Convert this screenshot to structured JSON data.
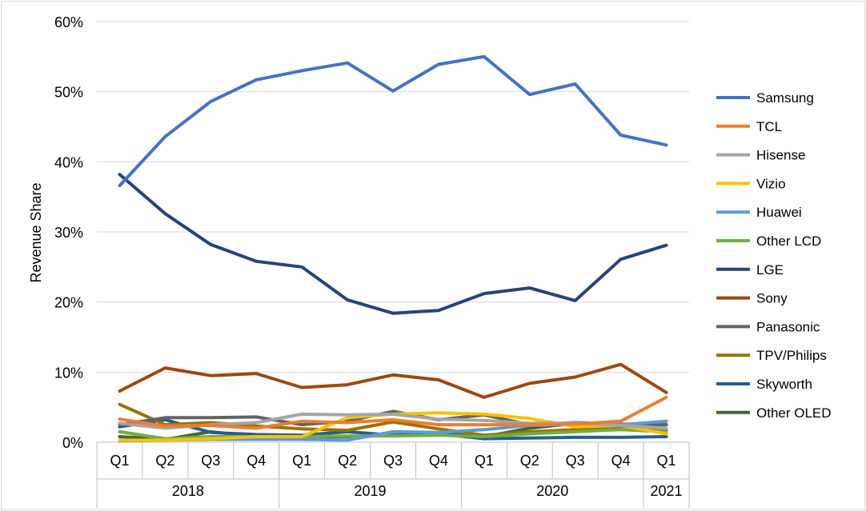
{
  "chart_data": {
    "type": "line",
    "title": "",
    "ylabel": "Revenue Share",
    "xlabel": "",
    "ylim": [
      0,
      60
    ],
    "yticks": [
      "0%",
      "10%",
      "20%",
      "30%",
      "40%",
      "50%",
      "60%"
    ],
    "grid": true,
    "legend_position": "right",
    "categories": [
      "Q1",
      "Q2",
      "Q3",
      "Q4",
      "Q1",
      "Q2",
      "Q3",
      "Q4",
      "Q1",
      "Q2",
      "Q3",
      "Q4",
      "Q1"
    ],
    "year_groups": [
      {
        "label": "2018",
        "span": 4
      },
      {
        "label": "2019",
        "span": 4
      },
      {
        "label": "2020",
        "span": 4
      },
      {
        "label": "2021",
        "span": 1
      }
    ],
    "series": [
      {
        "name": "Samsung",
        "color": "#4472C4",
        "values": [
          36.6,
          43.6,
          48.6,
          51.7,
          53.0,
          54.1,
          50.1,
          53.9,
          55.0,
          49.6,
          51.1,
          43.8,
          42.4
        ]
      },
      {
        "name": "TCL",
        "color": "#ED7D31",
        "values": [
          3.3,
          2.3,
          2.4,
          2.0,
          3.0,
          2.8,
          3.2,
          2.5,
          2.5,
          2.5,
          2.6,
          3.0,
          6.4
        ]
      },
      {
        "name": "Hisense",
        "color": "#A5A5A5",
        "values": [
          2.7,
          2.0,
          2.5,
          2.8,
          4.0,
          3.9,
          4.0,
          3.3,
          3.1,
          2.7,
          2.7,
          2.4,
          2.0
        ]
      },
      {
        "name": "Vizio",
        "color": "#FFC000",
        "values": [
          0.3,
          0.3,
          0.5,
          0.8,
          0.8,
          3.5,
          4.0,
          4.2,
          4.0,
          3.4,
          2.2,
          2.4,
          1.2
        ]
      },
      {
        "name": "Huawei",
        "color": "#5B9BD5",
        "values": [
          0.2,
          0.3,
          0.4,
          0.4,
          0.4,
          0.3,
          1.5,
          1.4,
          1.8,
          2.4,
          2.6,
          2.5,
          3.0
        ]
      },
      {
        "name": "Other LCD",
        "color": "#70AD47",
        "values": [
          1.5,
          0.5,
          0.8,
          0.8,
          0.8,
          0.9,
          0.9,
          1.0,
          0.8,
          1.2,
          1.5,
          1.8,
          1.5
        ]
      },
      {
        "name": "LGE",
        "color": "#264478",
        "values": [
          38.2,
          32.6,
          28.2,
          25.8,
          25.0,
          20.3,
          18.4,
          18.8,
          21.2,
          22.0,
          20.2,
          26.1,
          28.1
        ]
      },
      {
        "name": "Sony",
        "color": "#9E480E",
        "values": [
          7.3,
          10.6,
          9.5,
          9.8,
          7.8,
          8.2,
          9.6,
          8.9,
          6.4,
          8.4,
          9.3,
          11.1,
          7.1
        ]
      },
      {
        "name": "Panasonic",
        "color": "#636363",
        "values": [
          2.5,
          3.5,
          3.5,
          3.6,
          2.5,
          3.0,
          4.4,
          3.2,
          3.9,
          2.5,
          2.8,
          2.6,
          2.5
        ]
      },
      {
        "name": "TPV/Philips",
        "color": "#997300",
        "values": [
          5.4,
          2.5,
          2.8,
          2.3,
          1.9,
          1.7,
          2.9,
          1.9,
          1.0,
          1.5,
          1.8,
          2.2,
          1.7
        ]
      },
      {
        "name": "Skyworth",
        "color": "#255E91",
        "values": [
          2.2,
          3.2,
          1.4,
          1.1,
          1.0,
          1.5,
          1.0,
          1.2,
          0.5,
          0.6,
          0.7,
          0.7,
          0.8
        ]
      },
      {
        "name": "Other OLED",
        "color": "#43682B",
        "values": [
          0.8,
          0.4,
          1.5,
          0.8,
          0.7,
          0.8,
          1.0,
          1.3,
          0.8,
          2.0,
          2.7,
          2.3,
          2.5
        ]
      }
    ]
  }
}
